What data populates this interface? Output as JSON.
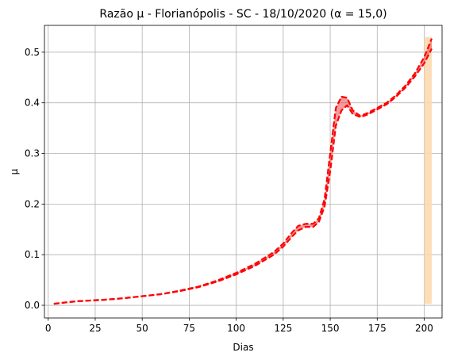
{
  "chart_data": {
    "type": "line",
    "title": "Razão μ - Florianópolis - SC - 18/10/2020 (α = 15,0)",
    "xlabel": "Dias",
    "ylabel": "μ",
    "xlim": [
      -2,
      209.5
    ],
    "ylim": [
      -0.025,
      0.553
    ],
    "xticks": [
      0,
      25,
      50,
      75,
      100,
      125,
      150,
      175,
      200
    ],
    "yticks": [
      0.0,
      0.1,
      0.2,
      0.3,
      0.4,
      0.5
    ],
    "ytick_labels": [
      "0.0",
      "0.1",
      "0.2",
      "0.3",
      "0.4",
      "0.5"
    ],
    "grid": true,
    "colors": {
      "line": "#ff0000",
      "band": "#e8474a",
      "highlight": "#fdd9b0",
      "grid": "#b0b0b0"
    },
    "highlight_span": [
      200,
      204
    ],
    "series": [
      {
        "x": [
          3,
          10,
          15,
          20,
          25,
          30,
          40,
          50,
          60,
          70,
          80,
          90,
          100,
          110,
          120,
          125,
          130,
          133,
          137,
          141,
          144,
          147,
          150,
          153,
          156,
          159,
          162,
          166,
          170,
          175,
          180,
          185,
          190,
          195,
          200,
          204
        ],
        "y": [
          0.003,
          0.006,
          0.008,
          0.009,
          0.01,
          0.011,
          0.014,
          0.018,
          0.022,
          0.028,
          0.036,
          0.047,
          0.061,
          0.078,
          0.1,
          0.116,
          0.137,
          0.148,
          0.155,
          0.155,
          0.165,
          0.195,
          0.265,
          0.355,
          0.385,
          0.395,
          0.378,
          0.372,
          0.377,
          0.387,
          0.397,
          0.412,
          0.43,
          0.452,
          0.478,
          0.507
        ]
      },
      {
        "x": [
          3,
          10,
          15,
          20,
          25,
          30,
          40,
          50,
          60,
          70,
          80,
          90,
          100,
          110,
          120,
          125,
          130,
          133,
          137,
          141,
          144,
          147,
          150,
          153,
          156,
          159,
          162,
          166,
          170,
          175,
          180,
          185,
          190,
          195,
          200,
          204
        ],
        "y": [
          0.003,
          0.006,
          0.008,
          0.009,
          0.01,
          0.011,
          0.014,
          0.018,
          0.022,
          0.029,
          0.037,
          0.049,
          0.064,
          0.082,
          0.105,
          0.122,
          0.145,
          0.157,
          0.161,
          0.161,
          0.172,
          0.21,
          0.3,
          0.39,
          0.412,
          0.41,
          0.385,
          0.374,
          0.38,
          0.39,
          0.4,
          0.415,
          0.434,
          0.458,
          0.49,
          0.527
        ]
      }
    ]
  }
}
